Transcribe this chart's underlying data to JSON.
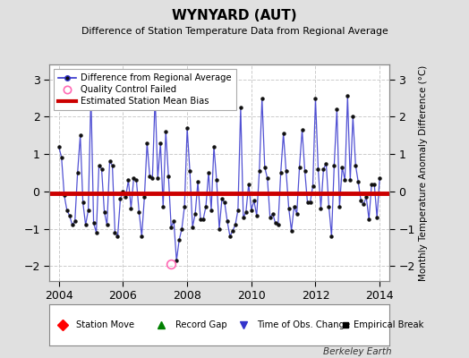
{
  "title": "WYNYARD (AUT)",
  "subtitle": "Difference of Station Temperature Data from Regional Average",
  "ylabel": "Monthly Temperature Anomaly Difference (°C)",
  "bias": -0.05,
  "xlim": [
    2003.7,
    2014.3
  ],
  "ylim": [
    -2.4,
    3.4
  ],
  "yticks": [
    -2,
    -1,
    0,
    1,
    2,
    3
  ],
  "xticks": [
    2004,
    2006,
    2008,
    2010,
    2012,
    2014
  ],
  "line_color": "#3333cc",
  "marker_color": "#111111",
  "bias_color": "#cc0000",
  "bg_color": "#e0e0e0",
  "plot_bg": "#ffffff",
  "grid_color": "#cccccc",
  "data_x": [
    2004.0,
    2004.083,
    2004.167,
    2004.25,
    2004.333,
    2004.417,
    2004.5,
    2004.583,
    2004.667,
    2004.75,
    2004.833,
    2004.917,
    2005.0,
    2005.083,
    2005.167,
    2005.25,
    2005.333,
    2005.417,
    2005.5,
    2005.583,
    2005.667,
    2005.75,
    2005.833,
    2005.917,
    2006.0,
    2006.083,
    2006.167,
    2006.25,
    2006.333,
    2006.417,
    2006.5,
    2006.583,
    2006.667,
    2006.75,
    2006.833,
    2006.917,
    2007.0,
    2007.083,
    2007.167,
    2007.25,
    2007.333,
    2007.417,
    2007.5,
    2007.583,
    2007.667,
    2007.75,
    2007.833,
    2007.917,
    2008.0,
    2008.083,
    2008.167,
    2008.25,
    2008.333,
    2008.417,
    2008.5,
    2008.583,
    2008.667,
    2008.75,
    2008.833,
    2008.917,
    2009.0,
    2009.083,
    2009.167,
    2009.25,
    2009.333,
    2009.417,
    2009.5,
    2009.583,
    2009.667,
    2009.75,
    2009.833,
    2009.917,
    2010.0,
    2010.083,
    2010.167,
    2010.25,
    2010.333,
    2010.417,
    2010.5,
    2010.583,
    2010.667,
    2010.75,
    2010.833,
    2010.917,
    2011.0,
    2011.083,
    2011.167,
    2011.25,
    2011.333,
    2011.417,
    2011.5,
    2011.583,
    2011.667,
    2011.75,
    2011.833,
    2011.917,
    2012.0,
    2012.083,
    2012.167,
    2012.25,
    2012.333,
    2012.417,
    2012.5,
    2012.583,
    2012.667,
    2012.75,
    2012.833,
    2012.917,
    2013.0,
    2013.083,
    2013.167,
    2013.25,
    2013.333,
    2013.417,
    2013.5,
    2013.583,
    2013.667,
    2013.75,
    2013.833,
    2013.917,
    2014.0
  ],
  "data_y": [
    1.2,
    0.9,
    -0.1,
    -0.5,
    -0.65,
    -0.9,
    -0.8,
    0.5,
    1.5,
    -0.3,
    -0.9,
    -0.5,
    2.6,
    -0.85,
    -1.1,
    0.7,
    0.6,
    -0.55,
    -0.9,
    0.8,
    0.7,
    -1.1,
    -1.2,
    -0.2,
    0.0,
    -0.15,
    0.3,
    -0.45,
    0.35,
    0.3,
    -0.55,
    -1.2,
    -0.15,
    1.3,
    0.4,
    0.35,
    2.55,
    0.35,
    1.3,
    -0.4,
    1.6,
    0.4,
    -0.95,
    -0.8,
    -1.85,
    -1.3,
    -1.0,
    -0.4,
    1.7,
    0.55,
    -0.95,
    -0.6,
    0.25,
    -0.75,
    -0.75,
    -0.4,
    0.5,
    -0.5,
    1.2,
    0.3,
    -1.0,
    -0.2,
    -0.3,
    -0.8,
    -1.2,
    -1.05,
    -0.9,
    -0.5,
    2.25,
    -0.7,
    -0.55,
    0.2,
    -0.5,
    -0.25,
    -0.65,
    0.55,
    2.5,
    0.65,
    0.35,
    -0.7,
    -0.6,
    -0.85,
    -0.9,
    0.5,
    1.55,
    0.55,
    -0.45,
    -1.05,
    -0.4,
    -0.6,
    0.65,
    1.65,
    0.55,
    -0.3,
    -0.3,
    0.15,
    2.5,
    0.6,
    -0.45,
    0.6,
    0.75,
    -0.4,
    -1.2,
    0.7,
    2.2,
    -0.4,
    0.65,
    0.3,
    2.55,
    0.3,
    2.0,
    0.7,
    0.25,
    -0.25,
    -0.35,
    -0.15,
    -0.75,
    0.2,
    0.2,
    -0.7,
    0.35
  ],
  "qc_x": [
    2007.5
  ],
  "qc_y": [
    -1.95
  ],
  "footer": "Berkeley Earth"
}
